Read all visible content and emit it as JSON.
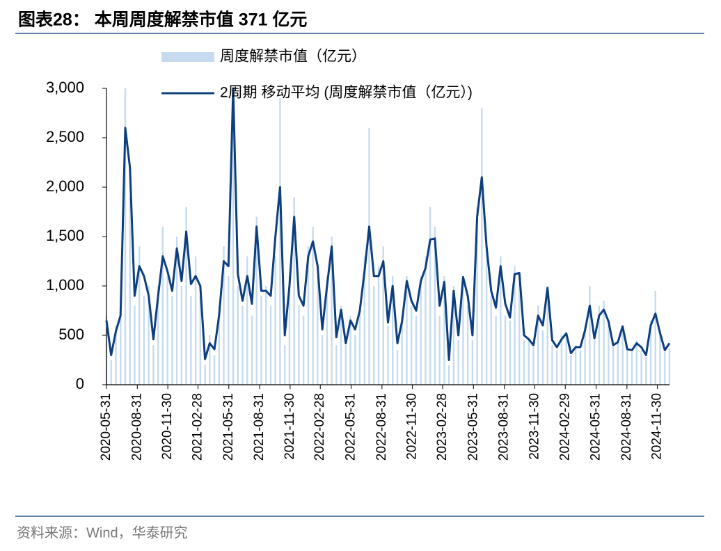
{
  "title": "图表28：  本周周度解禁市值 371 亿元",
  "source": "资料来源：Wind，华泰研究",
  "chart_data": {
    "type": "bar-line",
    "x": [
      "2020-05-31",
      "2020-06-14",
      "2020-06-28",
      "2020-07-12",
      "2020-07-26",
      "2020-08-09",
      "2020-08-23",
      "2020-09-06",
      "2020-09-20",
      "2020-10-04",
      "2020-10-18",
      "2020-11-01",
      "2020-11-15",
      "2020-11-29",
      "2020-12-13",
      "2020-12-27",
      "2021-01-10",
      "2021-01-24",
      "2021-02-07",
      "2021-02-21",
      "2021-03-07",
      "2021-03-21",
      "2021-04-04",
      "2021-04-18",
      "2021-05-02",
      "2021-05-16",
      "2021-05-30",
      "2021-06-13",
      "2021-06-27",
      "2021-07-11",
      "2021-07-25",
      "2021-08-08",
      "2021-08-22",
      "2021-09-05",
      "2021-09-19",
      "2021-10-03",
      "2021-10-17",
      "2021-10-31",
      "2021-11-14",
      "2021-11-28",
      "2021-12-12",
      "2021-12-26",
      "2022-01-09",
      "2022-01-23",
      "2022-02-06",
      "2022-02-20",
      "2022-03-06",
      "2022-03-20",
      "2022-04-03",
      "2022-04-17",
      "2022-05-01",
      "2022-05-15",
      "2022-05-29",
      "2022-06-12",
      "2022-06-26",
      "2022-07-10",
      "2022-07-24",
      "2022-08-07",
      "2022-08-21",
      "2022-09-04",
      "2022-09-18",
      "2022-10-02",
      "2022-10-16",
      "2022-10-30",
      "2022-11-13",
      "2022-11-27",
      "2022-12-11",
      "2022-12-25",
      "2023-01-08",
      "2023-01-22",
      "2023-02-05",
      "2023-02-19",
      "2023-03-05",
      "2023-03-19",
      "2023-04-02",
      "2023-04-16",
      "2023-04-30",
      "2023-05-14",
      "2023-05-28",
      "2023-06-11",
      "2023-06-25",
      "2023-07-09",
      "2023-07-23",
      "2023-08-06",
      "2023-08-20",
      "2023-09-03",
      "2023-09-17",
      "2023-10-01",
      "2023-10-15",
      "2023-10-29",
      "2023-11-12",
      "2023-11-26",
      "2023-12-10",
      "2023-12-24",
      "2024-01-07",
      "2024-01-21",
      "2024-02-04",
      "2024-02-18",
      "2024-03-03",
      "2024-03-17",
      "2024-03-31",
      "2024-04-14",
      "2024-04-28",
      "2024-05-12",
      "2024-05-26",
      "2024-06-09",
      "2024-06-23",
      "2024-07-07",
      "2024-07-21",
      "2024-08-04",
      "2024-08-18",
      "2024-09-01",
      "2024-09-15",
      "2024-09-29",
      "2024-10-13",
      "2024-10-27",
      "2024-11-10",
      "2024-11-24",
      "2024-12-08",
      "2024-12-22",
      "2025-01-05"
    ],
    "series": [
      {
        "name": "周度解禁市值（亿元）",
        "color": "#c6dbf0",
        "kind": "bar",
        "values": [
          700,
          250,
          600,
          800,
          3000,
          1900,
          800,
          1400,
          900,
          1000,
          400,
          1000,
          1600,
          1100,
          900,
          1500,
          1000,
          1800,
          900,
          1300,
          900,
          200,
          500,
          300,
          800,
          1400,
          1100,
          3000,
          1000,
          800,
          1300,
          700,
          1700,
          900,
          1000,
          800,
          1300,
          2900,
          400,
          1100,
          1900,
          800,
          700,
          1400,
          1600,
          1100,
          500,
          1100,
          1500,
          400,
          800,
          400,
          700,
          500,
          800,
          1300,
          2600,
          1000,
          1200,
          1400,
          600,
          1100,
          350,
          700,
          1100,
          800,
          700,
          1100,
          1300,
          1800,
          1600,
          700,
          1100,
          200,
          1000,
          450,
          1100,
          800,
          450,
          1800,
          2800,
          1500,
          900,
          700,
          1300,
          700,
          650,
          1200,
          1100,
          450,
          450,
          380,
          800,
          550,
          1000,
          400,
          350,
          500,
          500,
          300,
          400,
          350,
          600,
          1000,
          450,
          800,
          850,
          600,
          380,
          450,
          600,
          350,
          330,
          450,
          350,
          280,
          650,
          950,
          500,
          330,
          370
        ]
      },
      {
        "name": "2周期 移动平均 (周度解禁市值（亿元）)",
        "color": "#0d3f7f",
        "kind": "line",
        "values": [
          650,
          300,
          540,
          700,
          2600,
          2200,
          900,
          1200,
          1100,
          900,
          460,
          900,
          1300,
          1150,
          950,
          1380,
          1050,
          1550,
          1020,
          1100,
          1000,
          260,
          420,
          360,
          700,
          1250,
          1200,
          3000,
          1120,
          850,
          1100,
          820,
          1600,
          950,
          950,
          900,
          1500,
          2000,
          500,
          1000,
          1700,
          900,
          800,
          1300,
          1450,
          1200,
          560,
          1000,
          1400,
          480,
          760,
          420,
          650,
          560,
          750,
          1150,
          1600,
          1100,
          1100,
          1250,
          630,
          1000,
          420,
          640,
          1050,
          850,
          750,
          1050,
          1180,
          1470,
          1480,
          800,
          1040,
          250,
          950,
          500,
          1090,
          900,
          500,
          1700,
          2100,
          1400,
          950,
          780,
          1200,
          820,
          680,
          1120,
          1130,
          500,
          460,
          400,
          700,
          600,
          980,
          450,
          380,
          460,
          520,
          320,
          380,
          380,
          550,
          800,
          470,
          700,
          760,
          640,
          400,
          430,
          590,
          360,
          350,
          420,
          380,
          300,
          600,
          720,
          520,
          350,
          420
        ]
      }
    ],
    "xlim": [
      "2020-05-31",
      "2025-01-05"
    ],
    "xticks": [
      "2020-05-31",
      "2020-08-31",
      "2020-11-30",
      "2021-02-28",
      "2021-05-31",
      "2021-08-31",
      "2021-11-30",
      "2022-02-28",
      "2022-05-31",
      "2022-08-31",
      "2022-11-30",
      "2023-02-28",
      "2023-05-31",
      "2023-08-31",
      "2023-11-30",
      "2024-02-29",
      "2024-05-31",
      "2024-08-31",
      "2024-11-30"
    ],
    "ylim": [
      0,
      3000
    ],
    "yticks": [
      0,
      500,
      {
        "value": 1000,
        "label": "1,000"
      },
      {
        "value": 1500,
        "label": "1,500"
      },
      {
        "value": 2000,
        "label": "2,000"
      },
      {
        "value": 2500,
        "label": "2,500"
      },
      {
        "value": 3000,
        "label": "3,000"
      }
    ],
    "grid": false,
    "legend": "top"
  }
}
